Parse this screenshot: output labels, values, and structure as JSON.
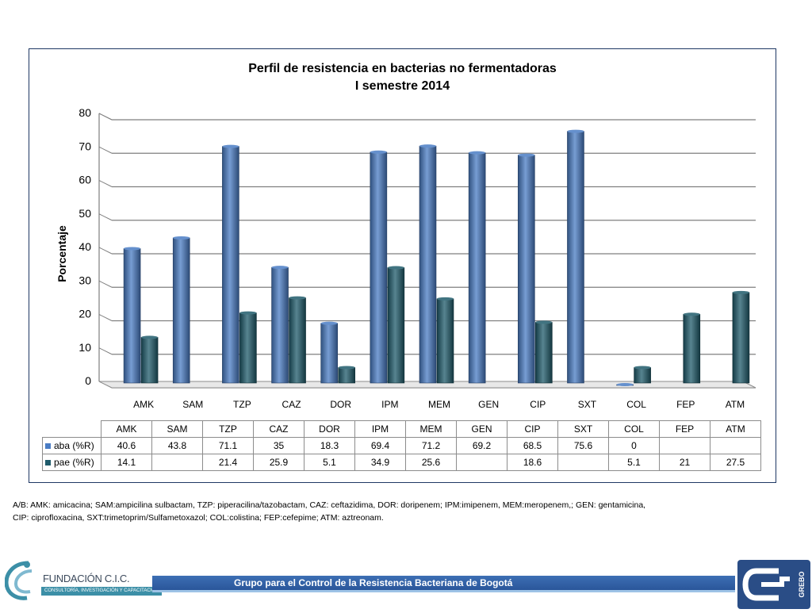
{
  "footnote": {
    "line1": "A/B: AMK: amicacina; SAM:ampicilina sulbactam, TZP: piperacilina/tazobactam, CAZ: ceftazidima, DOR: doripenem;  IPM:imipenem, MEM:meropenem,; GEN: gentamicina,",
    "line2": "CIP: ciprofloxacina, SXT:trimetoprim/Sulfametoxazol; COL:colistina; FEP:cefepime; ATM: aztreonam."
  },
  "footer": {
    "org_name": "FUNDACIÓN C.I.C. SALUD",
    "org_tagline": "CONSULTORÍA, INVESTIGACIÓN Y CAPACITACIÓN",
    "banner": "Grupo para el Control de la Resistencia Bacteriana de Bogotá",
    "right_logo_text": "GREBO"
  },
  "chart_data": {
    "type": "bar",
    "title_line1": "Perfil de resistencia en bacterias no fermentadoras",
    "title_line2": "I semestre 2014",
    "ylabel": "Porcentaje",
    "xlabel": "",
    "ylim": [
      0,
      80
    ],
    "yticks": [
      "0",
      "10",
      "20",
      "30",
      "40",
      "50",
      "60",
      "70",
      "80"
    ],
    "categories": [
      "AMK",
      "SAM",
      "TZP",
      "CAZ",
      "DOR",
      "IPM",
      "MEM",
      "GEN",
      "CIP",
      "SXT",
      "COL",
      "FEP",
      "ATM"
    ],
    "series": [
      {
        "name": "aba (%R)",
        "color": "#4a7cc4",
        "values": [
          40.6,
          43.8,
          71.1,
          35,
          18.3,
          69.4,
          71.2,
          69.2,
          68.5,
          75.6,
          0,
          null,
          null
        ],
        "labels": [
          "40.6",
          "43.8",
          "71.1",
          "35",
          "18.3",
          "69.4",
          "71.2",
          "69.2",
          "68.5",
          "75.6",
          "0",
          "",
          ""
        ]
      },
      {
        "name": "pae (%R)",
        "color": "#1f5b6b",
        "values": [
          14.1,
          null,
          21.4,
          25.9,
          5.1,
          34.9,
          25.6,
          null,
          18.6,
          null,
          5.1,
          21,
          27.5
        ],
        "labels": [
          "14.1",
          "",
          "21.4",
          "25.9",
          "5.1",
          "34.9",
          "25.6",
          "",
          "18.6",
          "",
          "5.1",
          "21",
          "27.5"
        ]
      }
    ],
    "grid": true,
    "legend": "data-table"
  }
}
